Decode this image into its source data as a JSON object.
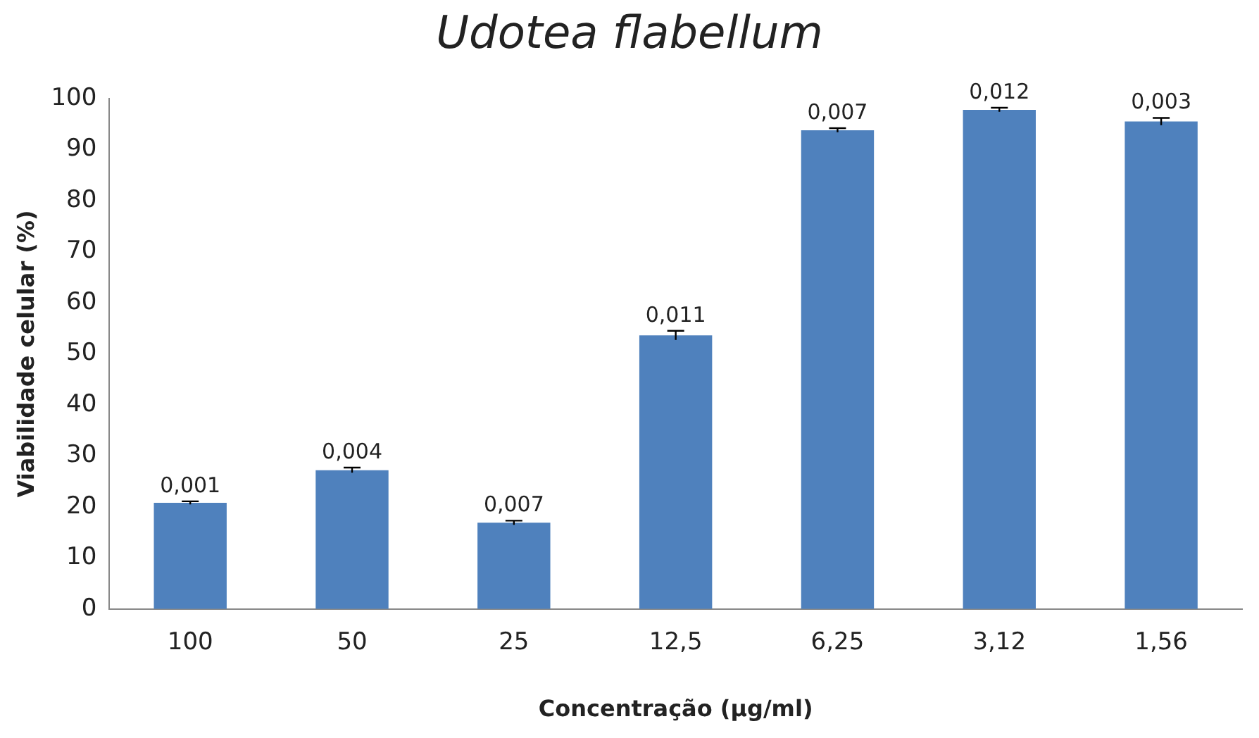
{
  "chart_data": {
    "type": "bar",
    "title": "Udotea flabellum",
    "xlabel": "Concentração (µg/ml)",
    "ylabel": "Viabilidade celular (%)",
    "categories": [
      "100",
      "50",
      "25",
      "12,5",
      "6,25",
      "3,12",
      "1,56"
    ],
    "values": [
      20.8,
      27.2,
      16.9,
      53.6,
      93.8,
      97.8,
      95.5
    ],
    "errors": [
      0.3,
      0.5,
      0.4,
      0.9,
      0.4,
      0.4,
      0.7
    ],
    "annotations": [
      {
        "text": "0,001",
        "x": "100",
        "y": 20.8
      },
      {
        "text": "0,004",
        "x": "50",
        "y": 27.2
      },
      {
        "text": "0,007",
        "x": "25",
        "y": 16.9
      },
      {
        "text": "0,011",
        "x": "12,5",
        "y": 53.6
      },
      {
        "text": "0,007",
        "x": "6,25",
        "y": 93.8
      },
      {
        "text": "0,012",
        "x": "3,12",
        "y": 97.8
      },
      {
        "text": "0,003",
        "x": "1,56",
        "y": 95.5
      }
    ],
    "color": "#4f81bd",
    "ylim": [
      0,
      100
    ],
    "yticks": [
      0,
      10,
      20,
      30,
      40,
      50,
      60,
      70,
      80,
      90,
      100
    ],
    "grid": false,
    "legend": false
  }
}
